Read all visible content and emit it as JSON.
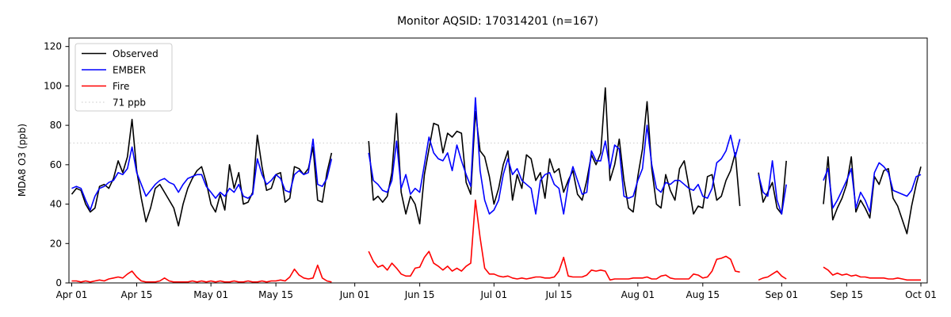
{
  "title": "Monitor AQSID: 170314201 (n=167)",
  "axes": {
    "ylabel": "MDA8 O3 (ppb)",
    "xlabel": "",
    "yticks": [
      0,
      20,
      40,
      60,
      80,
      100,
      120
    ],
    "xtick_labels": [
      "Apr 01",
      "Apr 15",
      "May 01",
      "May 15",
      "Jun 01",
      "Jun 15",
      "Jul 01",
      "Jul 15",
      "Aug 01",
      "Aug 15",
      "Sep 01",
      "Sep 15",
      "Oct 01"
    ],
    "ylim": [
      0,
      124.3
    ],
    "grid": "off"
  },
  "legend": {
    "position": "upper-left",
    "items": [
      {
        "label": "Observed",
        "color": "#000000",
        "style": "solid"
      },
      {
        "label": "EMBER",
        "color": "#0000ff",
        "style": "solid"
      },
      {
        "label": "Fire",
        "color": "#ff0000",
        "style": "solid"
      },
      {
        "label": "71 ppb",
        "color": "#d3d3d3",
        "style": "dotted"
      }
    ]
  },
  "threshold": {
    "value": 71,
    "label": "71 ppb",
    "color": "#d3d3d3"
  },
  "chart_data": {
    "type": "line",
    "title": "Monitor AQSID: 170314201 (n=167)",
    "xlabel": "",
    "ylabel": "MDA8 O3 (ppb)",
    "ylim": [
      0,
      124.3
    ],
    "x_range": [
      "Apr 01",
      "Oct 01"
    ],
    "n_observations": 167,
    "legend_position": "upper left",
    "series_names": [
      "Observed",
      "EMBER",
      "Fire"
    ],
    "series_colors": [
      "#000000",
      "#0000ff",
      "#ff0000"
    ],
    "note": "points rows are [date, observed_ppb, ember_ppb, fire_ppb]; null = missing day (line gap)",
    "points": [
      [
        "Apr 01",
        45,
        48,
        1
      ],
      [
        "Apr 02",
        48,
        49,
        1
      ],
      [
        "Apr 03",
        47,
        48,
        0.5
      ],
      [
        "Apr 04",
        40,
        42,
        1
      ],
      [
        "Apr 05",
        36,
        37,
        0.5
      ],
      [
        "Apr 06",
        38,
        44,
        1
      ],
      [
        "Apr 07",
        49,
        48,
        1.5
      ],
      [
        "Apr 08",
        50,
        49,
        1
      ],
      [
        "Apr 09",
        48,
        51,
        2
      ],
      [
        "Apr 10",
        53,
        52,
        2.5
      ],
      [
        "Apr 11",
        62,
        56,
        3
      ],
      [
        "Apr 12",
        56,
        55,
        2.5
      ],
      [
        "Apr 13",
        64,
        58,
        4.5
      ],
      [
        "Apr 14",
        83,
        69,
        6
      ],
      [
        "Apr 15",
        57,
        56,
        3
      ],
      [
        "Apr 16",
        43,
        50,
        1
      ],
      [
        "Apr 17",
        31,
        44,
        0.5
      ],
      [
        "Apr 18",
        38,
        47,
        0.5
      ],
      [
        "Apr 19",
        48,
        50,
        0.5
      ],
      [
        "Apr 20",
        50,
        52,
        1
      ],
      [
        "Apr 21",
        46,
        53,
        2.5
      ],
      [
        "Apr 22",
        42,
        51,
        1
      ],
      [
        "Apr 23",
        38,
        50,
        0.5
      ],
      [
        "Apr 24",
        29,
        46,
        0.5
      ],
      [
        "Apr 25",
        40,
        50,
        0.5
      ],
      [
        "Apr 26",
        48,
        53,
        0.5
      ],
      [
        "Apr 27",
        53,
        54,
        1
      ],
      [
        "Apr 28",
        57,
        55,
        0.5
      ],
      [
        "Apr 29",
        59,
        55,
        1
      ],
      [
        "Apr 30",
        51,
        49,
        0.5
      ],
      [
        "May 01",
        40,
        46,
        1
      ],
      [
        "May 02",
        36,
        43,
        0.5
      ],
      [
        "May 03",
        45,
        46,
        1
      ],
      [
        "May 04",
        37,
        44,
        0.5
      ],
      [
        "May 05",
        60,
        48,
        0.5
      ],
      [
        "May 06",
        48,
        46,
        1
      ],
      [
        "May 07",
        56,
        50,
        0.5
      ],
      [
        "May 08",
        40,
        44,
        0.5
      ],
      [
        "May 09",
        41,
        43,
        1
      ],
      [
        "May 10",
        46,
        45,
        0.5
      ],
      [
        "May 11",
        75,
        63,
        0.5
      ],
      [
        "May 12",
        59,
        55,
        1
      ],
      [
        "May 13",
        47,
        50,
        0.5
      ],
      [
        "May 14",
        48,
        52,
        1
      ],
      [
        "May 15",
        55,
        55,
        1
      ],
      [
        "May 16",
        56,
        53,
        1.5
      ],
      [
        "May 17",
        41,
        47,
        1
      ],
      [
        "May 18",
        43,
        46,
        3
      ],
      [
        "May 19",
        59,
        55,
        7
      ],
      [
        "May 20",
        58,
        57,
        4
      ],
      [
        "May 21",
        55,
        55,
        2.5
      ],
      [
        "May 22",
        58,
        56,
        2
      ],
      [
        "May 23",
        69,
        73,
        2.5
      ],
      [
        "May 24",
        42,
        50,
        9
      ],
      [
        "May 25",
        41,
        49,
        2.5
      ],
      [
        "May 26",
        56,
        53,
        1
      ],
      [
        "May 27",
        66,
        63,
        0.5
      ],
      [
        "May 28",
        null,
        null,
        null
      ],
      [
        "May 29",
        null,
        null,
        null
      ],
      [
        "May 30",
        null,
        null,
        null
      ],
      [
        "May 31",
        null,
        null,
        null
      ],
      [
        "Jun 01",
        null,
        null,
        null
      ],
      [
        "Jun 02",
        null,
        null,
        null
      ],
      [
        "Jun 03",
        null,
        null,
        null
      ],
      [
        "Jun 04",
        72,
        66,
        16
      ],
      [
        "Jun 05",
        42,
        52,
        11
      ],
      [
        "Jun 06",
        44,
        50,
        8
      ],
      [
        "Jun 07",
        41,
        47,
        9
      ],
      [
        "Jun 08",
        44,
        46,
        6.5
      ],
      [
        "Jun 09",
        56,
        52,
        10
      ],
      [
        "Jun 10",
        86,
        72,
        7.5
      ],
      [
        "Jun 11",
        46,
        48,
        4.5
      ],
      [
        "Jun 12",
        35,
        55,
        3.5
      ],
      [
        "Jun 13",
        44,
        45,
        3.5
      ],
      [
        "Jun 14",
        40,
        48,
        7.5
      ],
      [
        "Jun 15",
        30,
        46,
        8
      ],
      [
        "Jun 16",
        55,
        60,
        13
      ],
      [
        "Jun 17",
        68,
        74,
        16
      ],
      [
        "Jun 18",
        81,
        66,
        10
      ],
      [
        "Jun 19",
        80,
        63,
        8.5
      ],
      [
        "Jun 20",
        66,
        62,
        6.5
      ],
      [
        "Jun 21",
        76,
        66,
        8.5
      ],
      [
        "Jun 22",
        74,
        57,
        6
      ],
      [
        "Jun 23",
        77,
        70,
        7.5
      ],
      [
        "Jun 24",
        76,
        62,
        6
      ],
      [
        "Jun 25",
        51,
        55,
        8.5
      ],
      [
        "Jun 26",
        45,
        49,
        10
      ],
      [
        "Jun 27",
        87,
        94,
        42
      ],
      [
        "Jun 28",
        67,
        57,
        23
      ],
      [
        "Jun 29",
        64,
        42,
        7.5
      ],
      [
        "Jun 30",
        54,
        35,
        4.5
      ],
      [
        "Jul 01",
        40,
        37,
        4.5
      ],
      [
        "Jul 02",
        48,
        42,
        3.5
      ],
      [
        "Jul 03",
        60,
        55,
        3
      ],
      [
        "Jul 04",
        67,
        63,
        3.5
      ],
      [
        "Jul 05",
        42,
        55,
        2.5
      ],
      [
        "Jul 06",
        55,
        58,
        2
      ],
      [
        "Jul 07",
        48,
        52,
        2.5
      ],
      [
        "Jul 08",
        65,
        50,
        2
      ],
      [
        "Jul 09",
        63,
        48,
        2.5
      ],
      [
        "Jul 10",
        52,
        35,
        3
      ],
      [
        "Jul 11",
        56,
        52,
        3
      ],
      [
        "Jul 12",
        43,
        55,
        2.5
      ],
      [
        "Jul 13",
        63,
        56,
        2.5
      ],
      [
        "Jul 14",
        56,
        50,
        3
      ],
      [
        "Jul 15",
        58,
        48,
        6
      ],
      [
        "Jul 16",
        46,
        35,
        13
      ],
      [
        "Jul 17",
        52,
        50,
        3.5
      ],
      [
        "Jul 18",
        57,
        59,
        3
      ],
      [
        "Jul 19",
        45,
        52,
        3
      ],
      [
        "Jul 20",
        42,
        45,
        3
      ],
      [
        "Jul 21",
        52,
        46,
        4
      ],
      [
        "Jul 22",
        65,
        67,
        6.5
      ],
      [
        "Jul 23",
        60,
        62,
        6
      ],
      [
        "Jul 24",
        66,
        62,
        6.5
      ],
      [
        "Jul 25",
        99,
        72,
        6
      ],
      [
        "Jul 26",
        52,
        58,
        1.5
      ],
      [
        "Jul 27",
        60,
        70,
        2
      ],
      [
        "Jul 28",
        73,
        68,
        2
      ],
      [
        "Jul 29",
        52,
        44,
        2
      ],
      [
        "Jul 30",
        38,
        43,
        2
      ],
      [
        "Jul 31",
        36,
        44,
        2.5
      ],
      [
        "Aug 01",
        54,
        52,
        2.5
      ],
      [
        "Aug 02",
        68,
        58,
        2.5
      ],
      [
        "Aug 03",
        92,
        80,
        3
      ],
      [
        "Aug 04",
        58,
        60,
        2
      ],
      [
        "Aug 05",
        40,
        48,
        2
      ],
      [
        "Aug 06",
        38,
        46,
        3.5
      ],
      [
        "Aug 07",
        55,
        51,
        4
      ],
      [
        "Aug 08",
        47,
        50,
        2.5
      ],
      [
        "Aug 09",
        42,
        52,
        2
      ],
      [
        "Aug 10",
        58,
        52,
        2
      ],
      [
        "Aug 11",
        62,
        50,
        2
      ],
      [
        "Aug 12",
        49,
        48,
        2
      ],
      [
        "Aug 13",
        35,
        47,
        4.5
      ],
      [
        "Aug 14",
        39,
        50,
        4
      ],
      [
        "Aug 15",
        38,
        44,
        2.5
      ],
      [
        "Aug 16",
        54,
        43,
        3
      ],
      [
        "Aug 17",
        55,
        48,
        6
      ],
      [
        "Aug 18",
        42,
        61,
        12
      ],
      [
        "Aug 19",
        44,
        63,
        12.5
      ],
      [
        "Aug 20",
        52,
        67,
        13.5
      ],
      [
        "Aug 21",
        57,
        75,
        12
      ],
      [
        "Aug 22",
        66,
        64,
        6
      ],
      [
        "Aug 23",
        39,
        73,
        5.5
      ],
      [
        "Aug 24",
        null,
        null,
        null
      ],
      [
        "Aug 25",
        null,
        null,
        null
      ],
      [
        "Aug 26",
        null,
        null,
        null
      ],
      [
        "Aug 27",
        56,
        55,
        1.5
      ],
      [
        "Aug 28",
        41,
        46,
        2.5
      ],
      [
        "Aug 29",
        46,
        44,
        3
      ],
      [
        "Aug 30",
        51,
        62,
        4.5
      ],
      [
        "Aug 31",
        38,
        42,
        6
      ],
      [
        "Sep 01",
        35,
        35,
        3.5
      ],
      [
        "Sep 02",
        62,
        50,
        2
      ],
      [
        "Sep 03",
        null,
        null,
        null
      ],
      [
        "Sep 04",
        null,
        null,
        null
      ],
      [
        "Sep 05",
        null,
        null,
        null
      ],
      [
        "Sep 06",
        null,
        null,
        null
      ],
      [
        "Sep 07",
        null,
        null,
        null
      ],
      [
        "Sep 08",
        null,
        null,
        null
      ],
      [
        "Sep 09",
        null,
        null,
        null
      ],
      [
        "Sep 10",
        40,
        52,
        8
      ],
      [
        "Sep 11",
        64,
        58,
        6.5
      ],
      [
        "Sep 12",
        32,
        38,
        4
      ],
      [
        "Sep 13",
        38,
        42,
        5
      ],
      [
        "Sep 14",
        43,
        47,
        4
      ],
      [
        "Sep 15",
        50,
        52,
        4.5
      ],
      [
        "Sep 16",
        64,
        58,
        3.5
      ],
      [
        "Sep 17",
        36,
        38,
        4
      ],
      [
        "Sep 18",
        42,
        46,
        3
      ],
      [
        "Sep 19",
        38,
        42,
        3
      ],
      [
        "Sep 20",
        33,
        36,
        2.5
      ],
      [
        "Sep 21",
        54,
        56,
        2.5
      ],
      [
        "Sep 22",
        50,
        61,
        2.5
      ],
      [
        "Sep 23",
        57,
        59,
        2.5
      ],
      [
        "Sep 24",
        58,
        56,
        2
      ],
      [
        "Sep 25",
        43,
        47,
        2
      ],
      [
        "Sep 26",
        39,
        46,
        2.5
      ],
      [
        "Sep 27",
        32,
        45,
        2
      ],
      [
        "Sep 28",
        25,
        44,
        1.5
      ],
      [
        "Sep 29",
        39,
        47,
        1.5
      ],
      [
        "Sep 30",
        50,
        54,
        1.5
      ],
      [
        "Oct 01",
        59,
        55,
        1.5
      ]
    ]
  }
}
